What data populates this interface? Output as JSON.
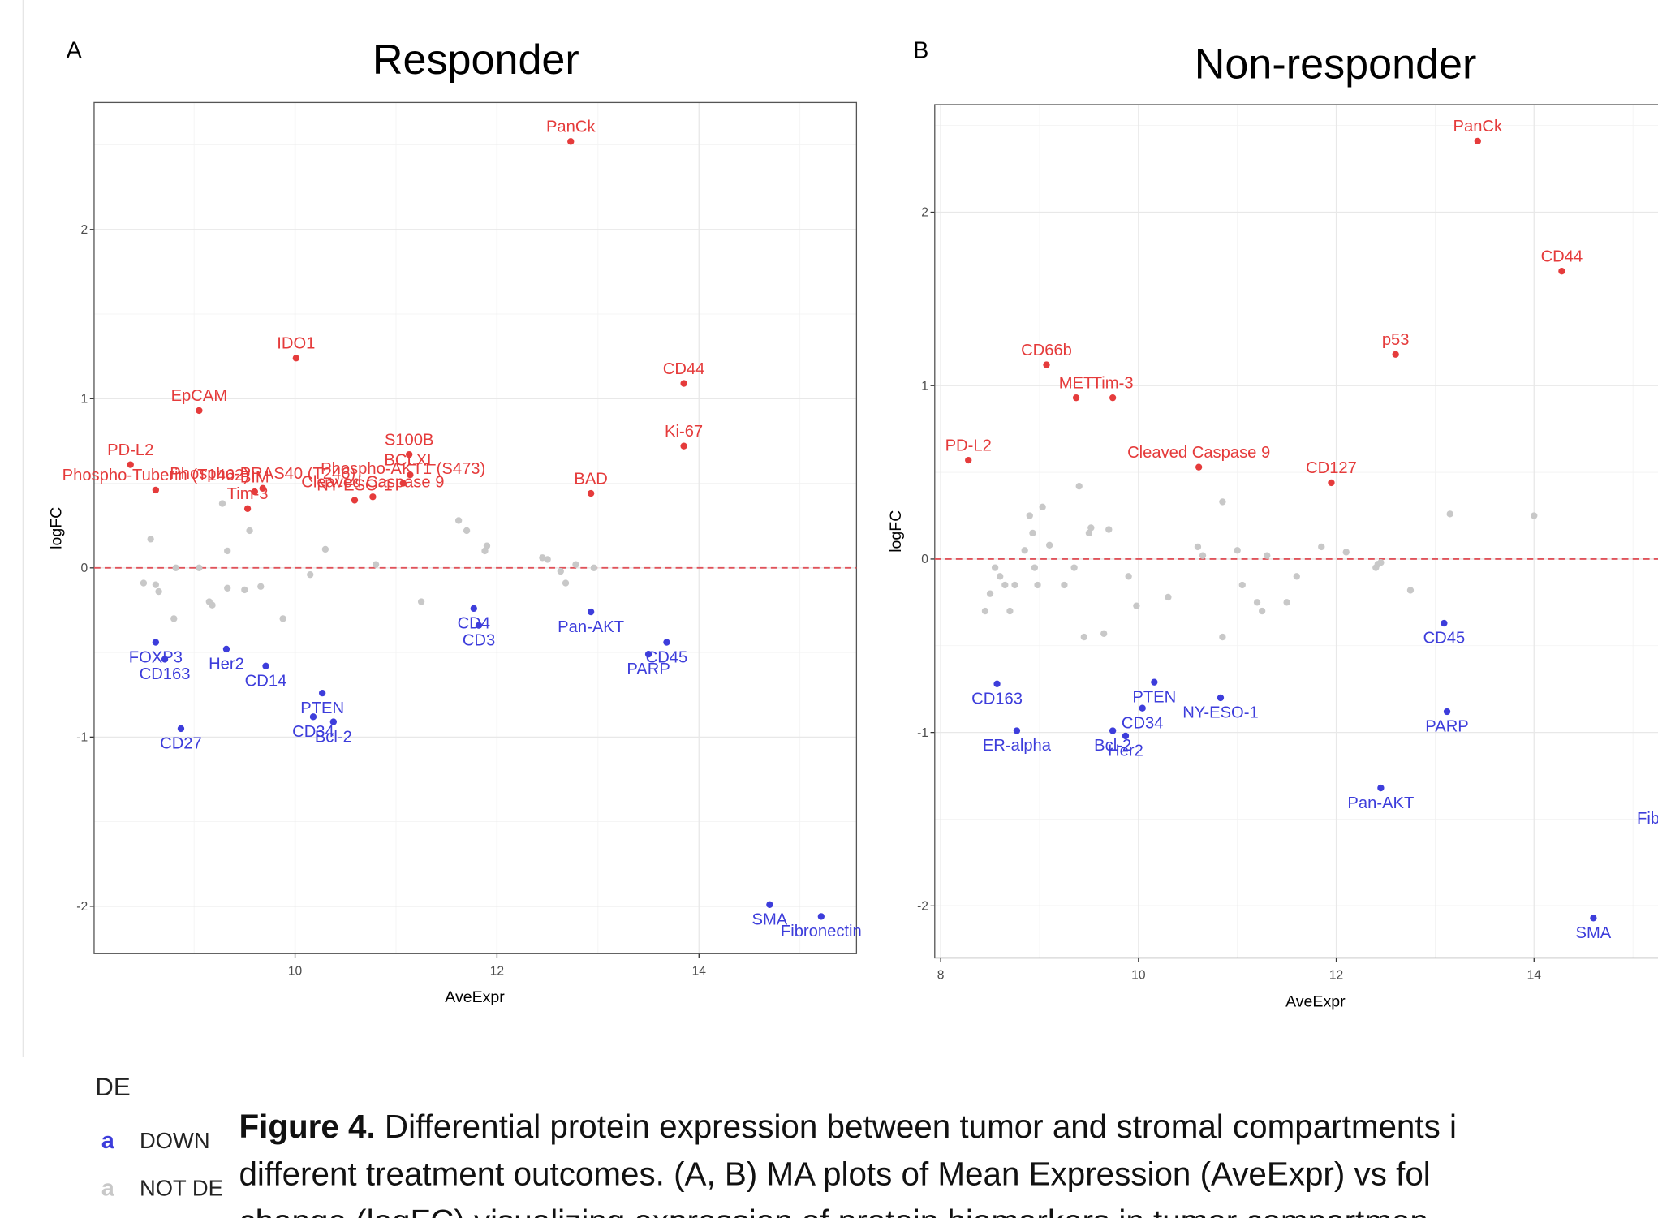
{
  "chart_data": [
    {
      "type": "scatter",
      "panel_label": "A",
      "title": "Responder",
      "x_label": "AveExpr",
      "y_label": "logFC",
      "xlim": [
        8.01,
        15.56
      ],
      "ylim": [
        -2.28,
        2.75
      ],
      "xticks": [
        10,
        12,
        14
      ],
      "yticks": [
        -2,
        -1,
        0,
        1,
        2
      ],
      "grid": true,
      "hline": 0,
      "hline_color": "#e0535b",
      "series": [
        {
          "name": "DOWN",
          "color": "#3d3ddb",
          "x": [
            8.62,
            8.71,
            8.87,
            9.32,
            9.71,
            10.27,
            10.18,
            10.38,
            11.77,
            11.82,
            12.93,
            13.68,
            13.5,
            14.7,
            15.21
          ],
          "y": [
            -0.44,
            -0.54,
            -0.95,
            -0.48,
            -0.58,
            -0.74,
            -0.88,
            -0.91,
            -0.24,
            -0.34,
            -0.26,
            -0.44,
            -0.51,
            -1.99,
            -2.06
          ],
          "labels": [
            "FOXP3",
            "CD163",
            "CD27",
            "Her2",
            "CD14",
            "PTEN",
            "CD34",
            "Bcl-2",
            "CD4",
            "CD3",
            "Pan-AKT",
            "CD45",
            "PARP",
            "SMA",
            "Fibronectin"
          ]
        },
        {
          "name": "NOT DE",
          "color": "#c8c8c8",
          "x": [
            8.5,
            8.57,
            8.62,
            8.65,
            8.8,
            8.82,
            9.05,
            9.15,
            9.18,
            9.28,
            9.33,
            9.33,
            9.5,
            9.55,
            9.66,
            9.88,
            10.15,
            10.3,
            10.8,
            11.25,
            11.62,
            11.7,
            11.88,
            11.9,
            12.45,
            12.5,
            12.63,
            12.68,
            12.78,
            12.96
          ],
          "y": [
            -0.09,
            0.17,
            -0.1,
            -0.14,
            -0.3,
            0.0,
            0.0,
            -0.2,
            -0.22,
            0.38,
            0.1,
            -0.12,
            -0.13,
            0.22,
            -0.11,
            -0.3,
            -0.04,
            0.11,
            0.02,
            -0.2,
            0.28,
            0.22,
            0.1,
            0.13,
            0.06,
            0.05,
            -0.02,
            -0.09,
            0.02,
            0.0
          ]
        },
        {
          "color": "#e53b3b",
          "x": [
            12.73,
            10.01,
            13.85,
            13.85,
            9.05,
            8.37,
            8.62,
            9.68,
            11.13,
            11.14,
            9.6,
            9.53,
            10.59,
            10.77,
            11.07,
            12.93
          ],
          "y": [
            2.52,
            1.24,
            1.09,
            0.72,
            0.93,
            0.61,
            0.46,
            0.47,
            0.67,
            0.55,
            0.45,
            0.35,
            0.4,
            0.42,
            0.5,
            0.44
          ],
          "labels": [
            "PanCk",
            "IDO1",
            "CD44",
            "Ki-67",
            "EpCAM",
            "PD-L2",
            "Phospho-Tuberin (T1462)",
            "Phospho-PRAS40 (T246)",
            "S100B",
            "BCLXL",
            "BIM",
            "Tim-3",
            "NY-ESO-1",
            "Cleaved Caspase 9",
            "Phospho-AKT1 (S473)",
            "BAD"
          ]
        }
      ]
    },
    {
      "type": "scatter",
      "panel_label": "B",
      "title": "Non-responder",
      "x_label": "AveExpr",
      "y_label": "logFC",
      "xlim": [
        7.94,
        16.13
      ],
      "ylim": [
        -2.3,
        2.62
      ],
      "xticks": [
        8,
        10,
        12,
        14
      ],
      "yticks": [
        -2,
        -1,
        0,
        1,
        2
      ],
      "grid": true,
      "hline": 0,
      "hline_color": "#e0535b",
      "series": [
        {
          "name": "DOWN",
          "color": "#3d3ddb",
          "x": [
            8.57,
            8.77,
            10.16,
            10.04,
            9.74,
            9.87,
            10.83,
            13.09,
            13.12,
            12.45,
            14.6,
            15.45
          ],
          "y": [
            -0.72,
            -0.99,
            -0.71,
            -0.86,
            -0.99,
            -1.02,
            -0.8,
            -0.37,
            -0.88,
            -1.32,
            -2.07,
            -1.41
          ],
          "labels": [
            "CD163",
            "ER-alpha",
            "PTEN",
            "CD34",
            "Bcl-2",
            "Her2",
            "NY-ESO-1",
            "CD45",
            "PARP",
            "Pan-AKT",
            "SMA",
            "Fibronectin"
          ]
        },
        {
          "name": "NOT DE",
          "color": "#c8c8c8",
          "x": [
            8.45,
            8.5,
            8.55,
            8.6,
            8.65,
            8.7,
            8.75,
            8.85,
            8.9,
            8.93,
            8.95,
            8.98,
            9.03,
            9.1,
            9.25,
            9.35,
            9.4,
            9.45,
            9.5,
            9.52,
            9.65,
            9.7,
            9.9,
            9.98,
            10.3,
            10.6,
            10.65,
            10.85,
            10.85,
            11.0,
            11.05,
            11.2,
            11.25,
            11.3,
            11.5,
            11.6,
            11.85,
            12.1,
            12.4,
            12.42,
            12.45,
            12.75,
            13.15,
            14.0
          ],
          "y": [
            -0.3,
            -0.2,
            -0.05,
            -0.1,
            -0.15,
            -0.3,
            -0.15,
            0.05,
            0.25,
            0.15,
            -0.05,
            -0.15,
            0.3,
            0.08,
            -0.15,
            -0.05,
            0.42,
            -0.45,
            0.15,
            0.18,
            -0.43,
            0.17,
            -0.1,
            -0.27,
            -0.22,
            0.07,
            0.02,
            -0.45,
            0.33,
            0.05,
            -0.15,
            -0.25,
            -0.3,
            0.02,
            -0.25,
            -0.1,
            0.07,
            0.04,
            -0.05,
            -0.03,
            -0.02,
            -0.18,
            0.26,
            0.25
          ]
        },
        {
          "color": "#e53b3b",
          "x": [
            13.43,
            14.28,
            12.6,
            9.07,
            9.37,
            9.74,
            10.61,
            11.95,
            8.28
          ],
          "y": [
            2.41,
            1.66,
            1.18,
            1.12,
            0.93,
            0.93,
            0.53,
            0.44,
            0.57
          ],
          "labels": [
            "PanCk",
            "CD44",
            "p53",
            "CD66b",
            "MET",
            "Tim-3",
            "Cleaved Caspase 9",
            "CD127",
            "PD-L2"
          ]
        }
      ]
    }
  ],
  "legend": {
    "title": "DE",
    "key": "a"
  },
  "caption": {
    "label": "Figure 4.",
    "lines": [
      " Differential protein expression between tumor and stromal compartments i",
      "different treatment outcomes. (A, B) MA plots of Mean Expression (AveExpr) vs fol",
      "change (logFC) visualizing expression of protein biomarkers in tumor compartmen"
    ]
  }
}
